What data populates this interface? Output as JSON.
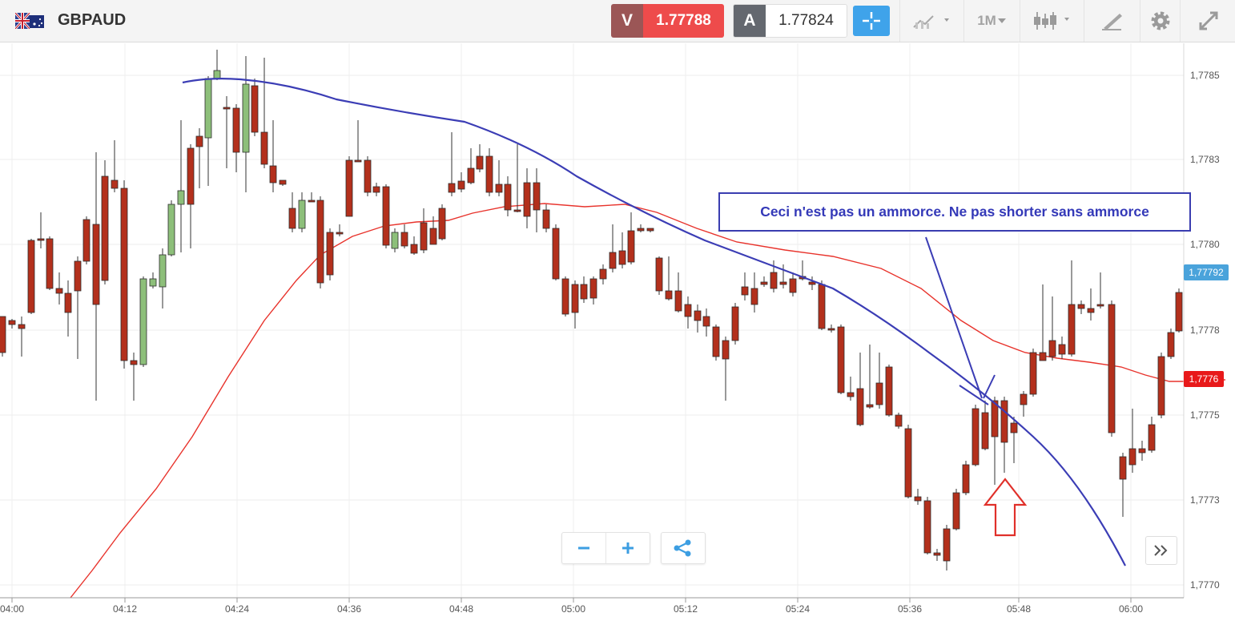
{
  "header": {
    "symbol": "GBPAUD",
    "flag_icon": "gb-au-flag-icon",
    "sell": {
      "label": "V",
      "price": "1.77788"
    },
    "buy": {
      "label": "A",
      "price": "1.77824"
    },
    "timeframe": "1M"
  },
  "chart": {
    "price_axis": [
      "1,7785",
      "1,7783",
      "1,7780",
      "1,7778",
      "1,7775",
      "1,7773",
      "1,7770"
    ],
    "time_axis": [
      "04:00",
      "04:12",
      "04:24",
      "04:36",
      "04:48",
      "05:00",
      "05:12",
      "05:24",
      "05:36",
      "05:48",
      "06:00"
    ],
    "current_price_label": "1,77792",
    "ma_price_label": "1,7776",
    "annotation": "Ceci n'est pas un ammorce. Ne pas shorter sans ammorce",
    "colors": {
      "bull": "#8dbf7a",
      "bear": "#b3301c",
      "ma_red": "#e8332c",
      "trend_blue": "#3b3db5",
      "tag_blue": "#4aa3db",
      "tag_red": "#e8191a"
    }
  },
  "controls": {
    "zoom_out": "−",
    "zoom_in": "+",
    "share_icon": "share-icon",
    "jump_icon": "jump-to-end-icon"
  }
}
